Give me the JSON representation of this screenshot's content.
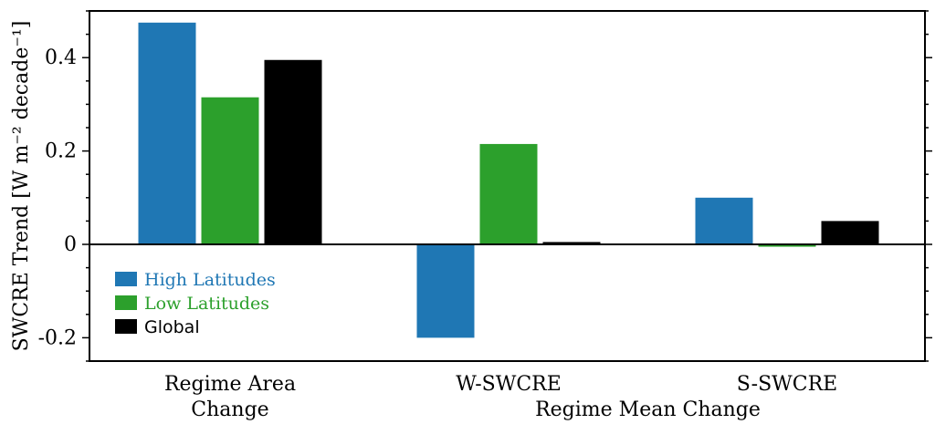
{
  "chart_data": {
    "type": "bar",
    "categories": [
      {
        "lines": [
          "Regime Area",
          "Change"
        ]
      },
      {
        "lines": [
          "W-SWCRE"
        ]
      },
      {
        "lines": [
          "S-SWCRE"
        ]
      }
    ],
    "group_label": "Regime Mean Change",
    "ylabel": "SWCRE Trend [W m⁻² decade⁻¹]",
    "ylim": [
      -0.25,
      0.5
    ],
    "yticks": [
      {
        "value": 0.4,
        "label": "0.4"
      },
      {
        "value": 0.2,
        "label": "0.2"
      },
      {
        "value": 0,
        "label": "0"
      },
      {
        "value": -0.2,
        "label": "-0.2"
      }
    ],
    "series": [
      {
        "name": "High Latitudes",
        "color": "#1f77b4",
        "values": [
          0.475,
          -0.2,
          0.1
        ]
      },
      {
        "name": "Low Latitudes",
        "color": "#2ca02c",
        "values": [
          0.315,
          0.215,
          -0.005
        ]
      },
      {
        "name": "Global",
        "color": "#000000",
        "values": [
          0.395,
          0.005,
          0.05
        ]
      }
    ],
    "legend": "lower-left",
    "zero_line": true,
    "grid": false
  }
}
